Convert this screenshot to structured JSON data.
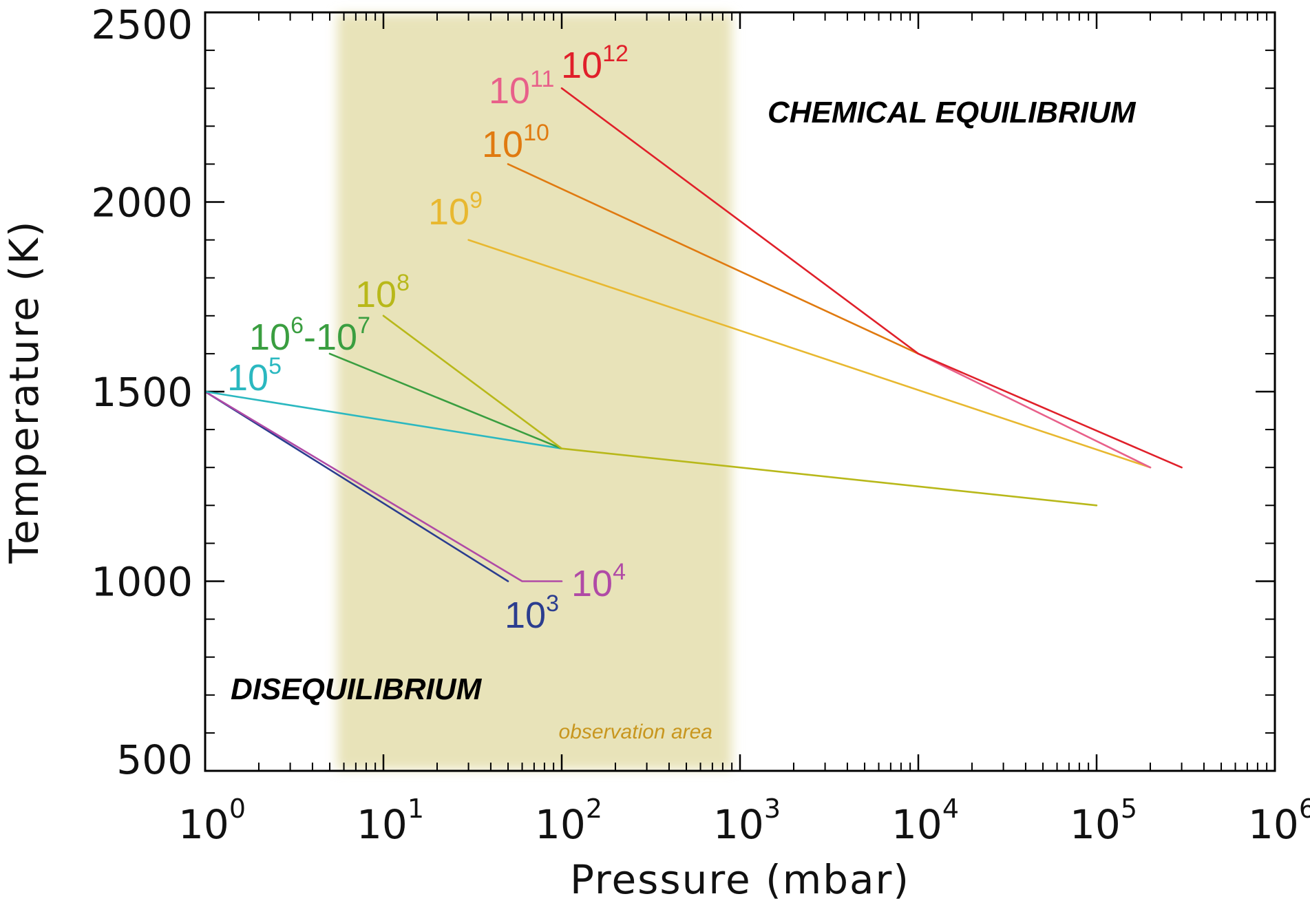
{
  "chart_data": {
    "type": "line",
    "title": "",
    "xlabel": "Pressure (mbar)",
    "ylabel": "Temperature (K)",
    "xscale": "log",
    "xlim": [
      1,
      1000000
    ],
    "ylim": [
      500,
      2500
    ],
    "xticks": [
      {
        "value": 1,
        "base": "10",
        "exp": "0"
      },
      {
        "value": 10,
        "base": "10",
        "exp": "1"
      },
      {
        "value": 100,
        "base": "10",
        "exp": "2"
      },
      {
        "value": 1000,
        "base": "10",
        "exp": "3"
      },
      {
        "value": 10000,
        "base": "10",
        "exp": "4"
      },
      {
        "value": 100000,
        "base": "10",
        "exp": "5"
      },
      {
        "value": 1000000,
        "base": "10",
        "exp": "6"
      }
    ],
    "yticks": [
      {
        "value": 500,
        "label": "500"
      },
      {
        "value": 1000,
        "label": "1000"
      },
      {
        "value": 1500,
        "label": "1500"
      },
      {
        "value": 2000,
        "label": "2000"
      },
      {
        "value": 2500,
        "label": "2500"
      }
    ],
    "shaded_region": {
      "x": [
        5.5,
        900
      ],
      "color": "#e8e3b9",
      "label": "observation area",
      "label_color": "#c8961e"
    },
    "annotations": [
      {
        "id": "chem-eq",
        "text": "CHEMICAL EQUILIBRIUM"
      },
      {
        "id": "diseq",
        "text": "DISEQUILIBRIUM"
      }
    ],
    "series": [
      {
        "name": "10^3",
        "base": "10",
        "exp": "3",
        "color": "#2b3d8f",
        "points": [
          [
            1,
            1500
          ],
          [
            50,
            1000
          ]
        ]
      },
      {
        "name": "10^4",
        "base": "10",
        "exp": "4",
        "color": "#b04aa6",
        "points": [
          [
            1,
            1500
          ],
          [
            60,
            1000
          ],
          [
            100,
            1000
          ]
        ]
      },
      {
        "name": "10^5",
        "base": "10",
        "exp": "5",
        "color": "#2bb8c0",
        "points": [
          [
            1,
            1500
          ],
          [
            100,
            1350
          ]
        ]
      },
      {
        "name": "10^6-10^7",
        "base": "10",
        "exp": "6",
        "base2": "10",
        "exp2": "7",
        "color": "#3a9e40",
        "points": [
          [
            5,
            1600
          ],
          [
            100,
            1350
          ]
        ]
      },
      {
        "name": "10^8",
        "base": "10",
        "exp": "8",
        "color": "#b8b81a",
        "points": [
          [
            10,
            1700
          ],
          [
            100,
            1350
          ],
          [
            100000,
            1200
          ]
        ]
      },
      {
        "name": "10^9",
        "base": "10",
        "exp": "9",
        "color": "#e8b830",
        "points": [
          [
            30,
            1900
          ],
          [
            200000,
            1300
          ]
        ]
      },
      {
        "name": "10^10",
        "base": "10",
        "exp": "10",
        "color": "#e07a10",
        "points": [
          [
            50,
            2100
          ],
          [
            10000,
            1600
          ]
        ]
      },
      {
        "name": "10^11",
        "base": "10",
        "exp": "11",
        "color": "#e8608a",
        "points": [
          [
            10000,
            1600
          ],
          [
            200000,
            1300
          ]
        ]
      },
      {
        "name": "10^12",
        "base": "10",
        "exp": "12",
        "color": "#e0202a",
        "points": [
          [
            100,
            2300
          ],
          [
            10000,
            1600
          ],
          [
            300000,
            1300
          ]
        ]
      }
    ]
  }
}
